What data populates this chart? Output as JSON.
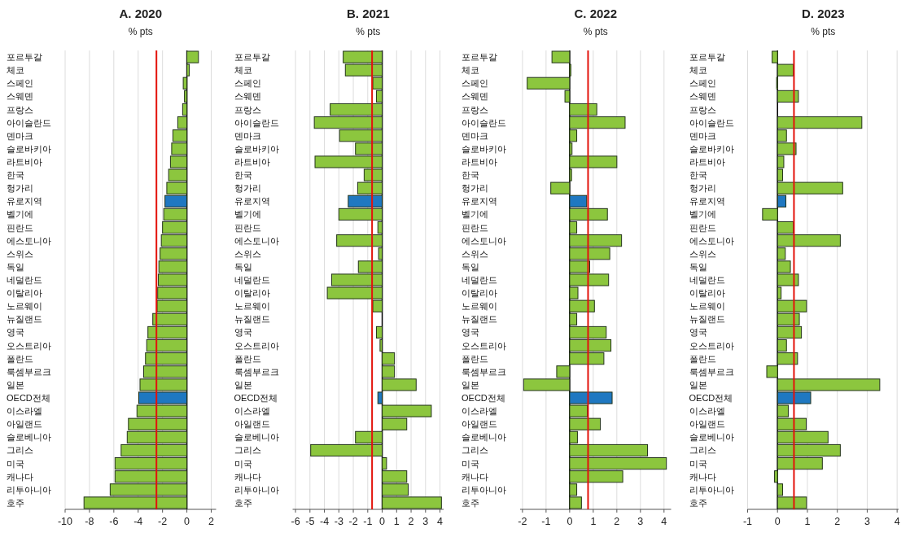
{
  "chart_data": [
    {
      "type": "bar",
      "orientation": "horizontal",
      "title": "A. 2020",
      "subtitle": "% pts",
      "categories": [
        "포르투갈",
        "체코",
        "스페인",
        "스웨덴",
        "프랑스",
        "아이슬란드",
        "덴마크",
        "슬로바키아",
        "라트비아",
        "한국",
        "헝가리",
        "유로지역",
        "벨기에",
        "핀란드",
        "에스토니아",
        "스위스",
        "독일",
        "네덜란드",
        "이탈리아",
        "노르웨이",
        "뉴질랜드",
        "영국",
        "오스트리아",
        "폴란드",
        "룩셈부르크",
        "일본",
        "OECD전체",
        "이스라엘",
        "아일랜드",
        "슬로베니아",
        "그리스",
        "미국",
        "캐나다",
        "리투아니아",
        "호주"
      ],
      "values": [
        0.95,
        0.2,
        -0.3,
        -0.2,
        -0.35,
        -0.75,
        -1.15,
        -1.25,
        -1.35,
        -1.5,
        -1.65,
        -1.8,
        -1.9,
        -2.0,
        -2.1,
        -2.2,
        -2.3,
        -2.35,
        -2.4,
        -2.45,
        -2.8,
        -3.2,
        -3.3,
        -3.4,
        -3.55,
        -3.85,
        -3.95,
        -4.1,
        -4.8,
        -4.9,
        -5.4,
        -5.9,
        -5.9,
        -6.3,
        -8.45
      ],
      "colors": [
        "#8cc63e",
        "#8cc63e",
        "#8cc63e",
        "#8cc63e",
        "#8cc63e",
        "#8cc63e",
        "#8cc63e",
        "#8cc63e",
        "#8cc63e",
        "#8cc63e",
        "#8cc63e",
        "#1f78c1",
        "#8cc63e",
        "#8cc63e",
        "#8cc63e",
        "#8cc63e",
        "#8cc63e",
        "#8cc63e",
        "#8cc63e",
        "#8cc63e",
        "#8cc63e",
        "#8cc63e",
        "#8cc63e",
        "#8cc63e",
        "#8cc63e",
        "#8cc63e",
        "#1f78c1",
        "#8cc63e",
        "#8cc63e",
        "#8cc63e",
        "#8cc63e",
        "#8cc63e",
        "#8cc63e",
        "#8cc63e",
        "#8cc63e"
      ],
      "xlim": [
        -10,
        2.4
      ],
      "xticks": [
        -10,
        -8,
        -6,
        -4,
        -2,
        0,
        2
      ],
      "grid": "x",
      "ref_lines": [
        {
          "axis": "x",
          "value": -2.5,
          "color": "#e3120b"
        }
      ]
    },
    {
      "type": "bar",
      "orientation": "horizontal",
      "title": "B. 2021",
      "subtitle": "% pts",
      "categories": [
        "포르투갈",
        "체코",
        "스페인",
        "스웨덴",
        "프랑스",
        "아이슬란드",
        "덴마크",
        "슬로바키아",
        "라트비아",
        "한국",
        "헝가리",
        "유로지역",
        "벨기에",
        "핀란드",
        "에스토니아",
        "스위스",
        "독일",
        "네덜란드",
        "이탈리아",
        "노르웨이",
        "뉴질랜드",
        "영국",
        "오스트리아",
        "폴란드",
        "룩셈부르크",
        "일본",
        "OECD전체",
        "이스라엘",
        "아일랜드",
        "슬로베니아",
        "그리스",
        "미국",
        "캐나다",
        "리투아니아",
        "호주"
      ],
      "values": [
        -2.7,
        -2.55,
        -0.65,
        -0.4,
        -3.6,
        -4.7,
        -2.95,
        -1.85,
        -4.65,
        -1.25,
        -1.7,
        -2.35,
        -3.0,
        -0.3,
        -3.15,
        -0.25,
        -1.65,
        -3.5,
        -3.8,
        -0.65,
        null,
        -0.4,
        -0.15,
        0.85,
        0.85,
        2.35,
        -0.3,
        3.4,
        1.7,
        -1.85,
        -4.95,
        0.3,
        1.7,
        1.8,
        4.1
      ],
      "colors": [
        "#8cc63e",
        "#8cc63e",
        "#8cc63e",
        "#8cc63e",
        "#8cc63e",
        "#8cc63e",
        "#8cc63e",
        "#8cc63e",
        "#8cc63e",
        "#8cc63e",
        "#8cc63e",
        "#1f78c1",
        "#8cc63e",
        "#8cc63e",
        "#8cc63e",
        "#8cc63e",
        "#8cc63e",
        "#8cc63e",
        "#8cc63e",
        "#8cc63e",
        null,
        "#8cc63e",
        "#8cc63e",
        "#8cc63e",
        "#8cc63e",
        "#8cc63e",
        "#1f78c1",
        "#8cc63e",
        "#8cc63e",
        "#8cc63e",
        "#8cc63e",
        "#8cc63e",
        "#8cc63e",
        "#8cc63e",
        "#8cc63e"
      ],
      "xlim": [
        -6.2,
        4.25
      ],
      "xticks": [
        -6,
        -5,
        -4,
        -3,
        -2,
        -1,
        0,
        1,
        2,
        3,
        4
      ],
      "grid": "x",
      "ref_lines": [
        {
          "axis": "x",
          "value": -0.7,
          "color": "#e3120b"
        }
      ]
    },
    {
      "type": "bar",
      "orientation": "horizontal",
      "title": "C. 2022",
      "subtitle": "% pts",
      "categories": [
        "포르투갈",
        "체코",
        "스페인",
        "스웨덴",
        "프랑스",
        "아이슬란드",
        "덴마크",
        "슬로바키아",
        "라트비아",
        "한국",
        "헝가리",
        "유로지역",
        "벨기에",
        "핀란드",
        "에스토니아",
        "스위스",
        "독일",
        "네덜란드",
        "이탈리아",
        "노르웨이",
        "뉴질랜드",
        "영국",
        "오스트리아",
        "폴란드",
        "룩셈부르크",
        "일본",
        "OECD전체",
        "이스라엘",
        "아일랜드",
        "슬로베니아",
        "그리스",
        "미국",
        "캐나다",
        "리투아니아",
        "호주"
      ],
      "values": [
        -0.75,
        0.05,
        -1.8,
        -0.2,
        1.15,
        2.35,
        0.3,
        0.1,
        2.0,
        0.08,
        -0.8,
        0.72,
        1.6,
        0.3,
        2.2,
        1.7,
        0.85,
        1.65,
        0.35,
        1.05,
        0.3,
        1.55,
        1.75,
        1.45,
        -0.55,
        -1.95,
        1.8,
        0.75,
        1.3,
        0.33,
        3.3,
        4.1,
        2.25,
        0.3,
        0.5
      ],
      "colors": [
        "#8cc63e",
        "#8cc63e",
        "#8cc63e",
        "#8cc63e",
        "#8cc63e",
        "#8cc63e",
        "#8cc63e",
        "#8cc63e",
        "#8cc63e",
        "#8cc63e",
        "#8cc63e",
        "#1f78c1",
        "#8cc63e",
        "#8cc63e",
        "#8cc63e",
        "#8cc63e",
        "#8cc63e",
        "#8cc63e",
        "#8cc63e",
        "#8cc63e",
        "#8cc63e",
        "#8cc63e",
        "#8cc63e",
        "#8cc63e",
        "#8cc63e",
        "#8cc63e",
        "#1f78c1",
        "#8cc63e",
        "#8cc63e",
        "#8cc63e",
        "#8cc63e",
        "#8cc63e",
        "#8cc63e",
        "#8cc63e",
        "#8cc63e"
      ],
      "xlim": [
        -2.1,
        4.3
      ],
      "xticks": [
        -2,
        -1,
        0,
        1,
        2,
        3,
        4
      ],
      "grid": "x",
      "ref_lines": [
        {
          "axis": "x",
          "value": 0.78,
          "color": "#e3120b"
        }
      ]
    },
    {
      "type": "bar",
      "orientation": "horizontal",
      "title": "D. 2023",
      "subtitle": "% pts",
      "categories": [
        "포르투갈",
        "체코",
        "스페인",
        "스웨덴",
        "프랑스",
        "아이슬란드",
        "덴마크",
        "슬로바키아",
        "라트비아",
        "한국",
        "헝가리",
        "유로지역",
        "벨기에",
        "핀란드",
        "에스토니아",
        "스위스",
        "독일",
        "네덜란드",
        "이탈리아",
        "노르웨이",
        "뉴질랜드",
        "영국",
        "오스트리아",
        "폴란드",
        "룩셈부르크",
        "일본",
        "OECD전체",
        "이스라엘",
        "아일랜드",
        "슬로베니아",
        "그리스",
        "미국",
        "캐나다",
        "리투아니아",
        "호주"
      ],
      "values": [
        -0.18,
        0.53,
        -0.03,
        0.7,
        null,
        2.82,
        0.3,
        0.62,
        0.21,
        0.17,
        2.18,
        0.28,
        -0.5,
        0.53,
        2.1,
        0.26,
        0.43,
        0.7,
        0.12,
        0.97,
        0.73,
        0.8,
        0.3,
        0.67,
        -0.36,
        3.42,
        1.11,
        0.36,
        0.96,
        1.69,
        2.1,
        1.5,
        -0.1,
        0.17,
        0.97
      ],
      "colors": [
        "#8cc63e",
        "#8cc63e",
        "#8cc63e",
        "#8cc63e",
        null,
        "#8cc63e",
        "#8cc63e",
        "#8cc63e",
        "#8cc63e",
        "#8cc63e",
        "#8cc63e",
        "#1f78c1",
        "#8cc63e",
        "#8cc63e",
        "#8cc63e",
        "#8cc63e",
        "#8cc63e",
        "#8cc63e",
        "#8cc63e",
        "#8cc63e",
        "#8cc63e",
        "#8cc63e",
        "#8cc63e",
        "#8cc63e",
        "#8cc63e",
        "#8cc63e",
        "#1f78c1",
        "#8cc63e",
        "#8cc63e",
        "#8cc63e",
        "#8cc63e",
        "#8cc63e",
        "#8cc63e",
        "#8cc63e",
        "#8cc63e"
      ],
      "xlim": [
        -1,
        4.05
      ],
      "xticks": [
        -1,
        0,
        1,
        2,
        3,
        4
      ],
      "grid": "x",
      "ref_lines": [
        {
          "axis": "x",
          "value": 0.55,
          "color": "#e3120b"
        }
      ]
    }
  ]
}
